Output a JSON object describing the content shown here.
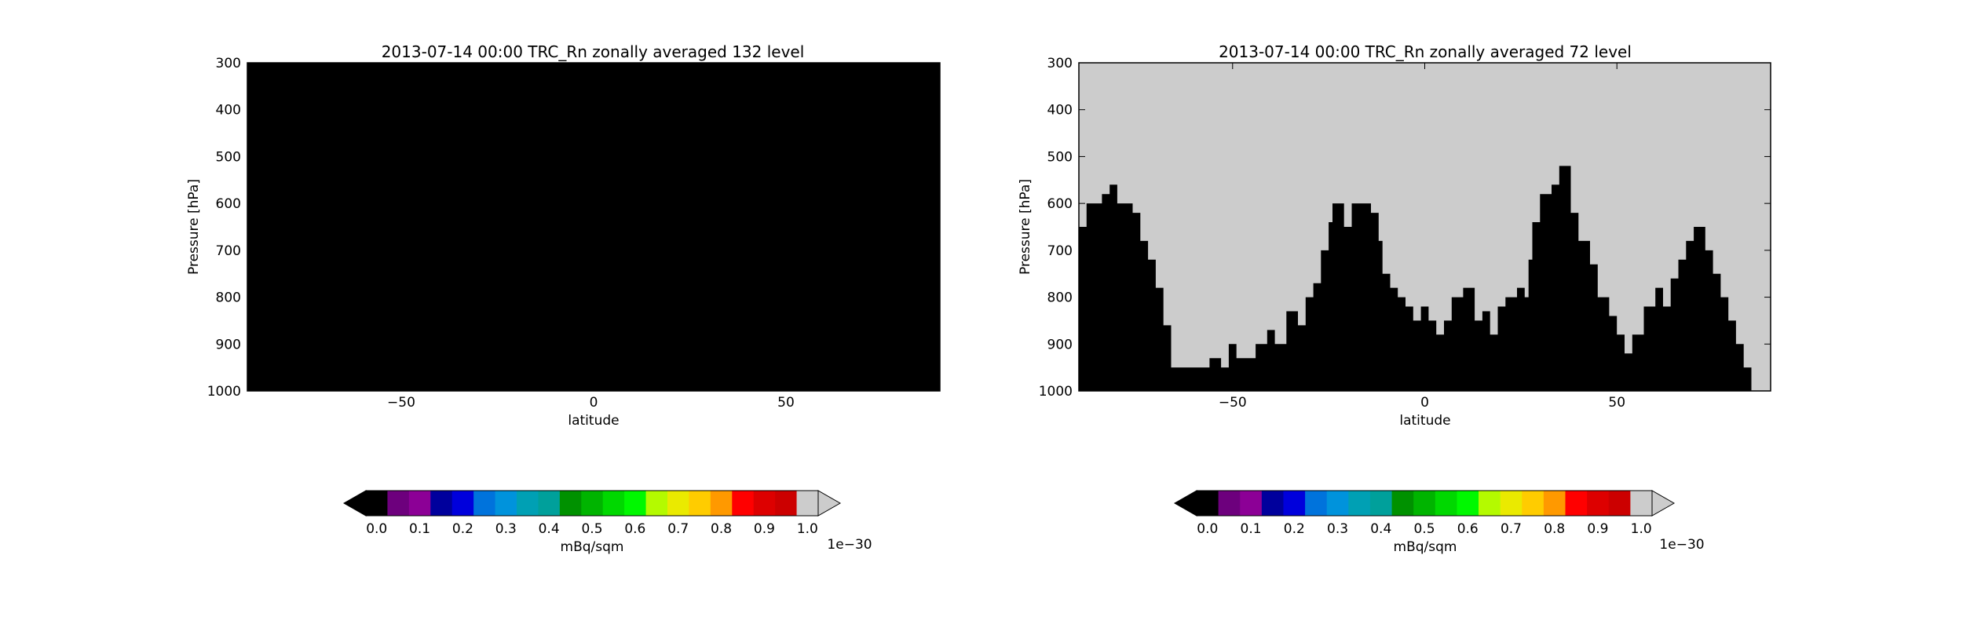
{
  "chart_data": [
    {
      "type": "heatmap",
      "title": "2013-07-14 00:00 TRC_Rn zonally averaged 132 level",
      "xlabel": "latitude",
      "ylabel": "Pressure [hPa]",
      "xlim": [
        -90,
        90
      ],
      "ylim": [
        1000,
        300
      ],
      "x_ticks": [
        -50,
        0,
        50
      ],
      "y_ticks": [
        300,
        400,
        500,
        600,
        700,
        800,
        900,
        1000
      ],
      "field_description": "entire domain at minimum value (0.0)",
      "boundary": [],
      "colorbar": {
        "label": "mBq/sqm",
        "scale_label": "1e−30",
        "ticks": [
          "0.0",
          "0.1",
          "0.2",
          "0.3",
          "0.4",
          "0.5",
          "0.6",
          "0.7",
          "0.8",
          "0.9",
          "1.0"
        ],
        "under_color": "#000000",
        "over_color": "#cccccc",
        "colors": [
          "#000000",
          "#6d007d",
          "#8c0096",
          "#00009c",
          "#0000dc",
          "#0073dc",
          "#0093dc",
          "#00a0b4",
          "#00a09b",
          "#009100",
          "#00b400",
          "#00d800",
          "#00f800",
          "#b4fa00",
          "#eaea00",
          "#ffcc00",
          "#ff9900",
          "#ff0000",
          "#dd0000",
          "#cc0000",
          "#cccccc"
        ]
      }
    },
    {
      "type": "heatmap",
      "title": "2013-07-14 00:00 TRC_Rn zonally averaged 72 level",
      "xlabel": "latitude",
      "ylabel": "Pressure [hPa]",
      "xlim": [
        -90,
        90
      ],
      "ylim": [
        1000,
        300
      ],
      "x_ticks": [
        -50,
        0,
        50
      ],
      "y_ticks": [
        300,
        400,
        500,
        600,
        700,
        800,
        900,
        1000
      ],
      "field_description": "values at maximum (>=1.0e-30, gray) above boundary, minimum (0.0, black) below",
      "boundary": [
        [
          -90,
          650
        ],
        [
          -88,
          600
        ],
        [
          -86,
          600
        ],
        [
          -84,
          580
        ],
        [
          -82,
          560
        ],
        [
          -80,
          600
        ],
        [
          -78,
          600
        ],
        [
          -76,
          620
        ],
        [
          -74,
          680
        ],
        [
          -72,
          720
        ],
        [
          -70,
          780
        ],
        [
          -68,
          860
        ],
        [
          -66,
          950
        ],
        [
          -62,
          950
        ],
        [
          -58,
          950
        ],
        [
          -56,
          930
        ],
        [
          -53,
          950
        ],
        [
          -51,
          900
        ],
        [
          -49,
          930
        ],
        [
          -46,
          930
        ],
        [
          -44,
          900
        ],
        [
          -41,
          870
        ],
        [
          -39,
          900
        ],
        [
          -36,
          830
        ],
        [
          -33,
          860
        ],
        [
          -31,
          800
        ],
        [
          -29,
          770
        ],
        [
          -27,
          700
        ],
        [
          -25,
          640
        ],
        [
          -24,
          600
        ],
        [
          -21,
          650
        ],
        [
          -19,
          600
        ],
        [
          -16,
          600
        ],
        [
          -14,
          620
        ],
        [
          -12,
          680
        ],
        [
          -11,
          750
        ],
        [
          -9,
          780
        ],
        [
          -7,
          800
        ],
        [
          -5,
          820
        ],
        [
          -3,
          850
        ],
        [
          -1,
          820
        ],
        [
          1,
          850
        ],
        [
          3,
          880
        ],
        [
          5,
          850
        ],
        [
          7,
          800
        ],
        [
          10,
          780
        ],
        [
          13,
          850
        ],
        [
          15,
          830
        ],
        [
          17,
          880
        ],
        [
          19,
          820
        ],
        [
          21,
          800
        ],
        [
          24,
          780
        ],
        [
          26,
          800
        ],
        [
          27,
          720
        ],
        [
          28,
          640
        ],
        [
          30,
          580
        ],
        [
          33,
          560
        ],
        [
          35,
          520
        ],
        [
          38,
          620
        ],
        [
          40,
          680
        ],
        [
          43,
          730
        ],
        [
          45,
          800
        ],
        [
          48,
          840
        ],
        [
          50,
          880
        ],
        [
          52,
          920
        ],
        [
          54,
          880
        ],
        [
          57,
          820
        ],
        [
          60,
          780
        ],
        [
          62,
          820
        ],
        [
          64,
          760
        ],
        [
          66,
          720
        ],
        [
          68,
          680
        ],
        [
          70,
          650
        ],
        [
          73,
          700
        ],
        [
          75,
          750
        ],
        [
          77,
          800
        ],
        [
          79,
          850
        ],
        [
          81,
          900
        ],
        [
          83,
          950
        ],
        [
          85,
          1000
        ]
      ],
      "colorbar": {
        "label": "mBq/sqm",
        "scale_label": "1e−30",
        "ticks": [
          "0.0",
          "0.1",
          "0.2",
          "0.3",
          "0.4",
          "0.5",
          "0.6",
          "0.7",
          "0.8",
          "0.9",
          "1.0"
        ],
        "under_color": "#000000",
        "over_color": "#cccccc",
        "colors": [
          "#000000",
          "#6d007d",
          "#8c0096",
          "#00009c",
          "#0000dc",
          "#0073dc",
          "#0093dc",
          "#00a0b4",
          "#00a09b",
          "#009100",
          "#00b400",
          "#00d800",
          "#00f800",
          "#b4fa00",
          "#eaea00",
          "#ffcc00",
          "#ff9900",
          "#ff0000",
          "#dd0000",
          "#cc0000",
          "#cccccc"
        ]
      }
    }
  ]
}
